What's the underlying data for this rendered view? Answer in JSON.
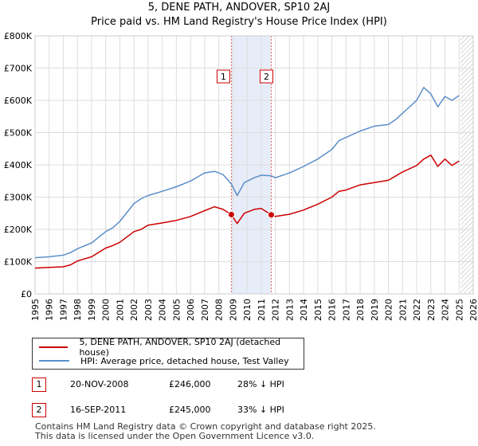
{
  "header": {
    "title_line1": "5, DENE PATH, ANDOVER, SP10 2AJ",
    "title_line2": "Price paid vs. HM Land Registry's House Price Index (HPI)"
  },
  "chart_data": {
    "type": "line",
    "title": "5, DENE PATH, ANDOVER, SP10 2AJ — Price paid vs. HM Land Registry's House Price Index (HPI)",
    "xlabel": "",
    "ylabel": "",
    "xlim": [
      1995,
      2026
    ],
    "ylim": [
      0,
      800000
    ],
    "y_ticks": [
      {
        "value": 0,
        "label": "£0"
      },
      {
        "value": 100000,
        "label": "£100K"
      },
      {
        "value": 200000,
        "label": "£200K"
      },
      {
        "value": 300000,
        "label": "£300K"
      },
      {
        "value": 400000,
        "label": "£400K"
      },
      {
        "value": 500000,
        "label": "£500K"
      },
      {
        "value": 600000,
        "label": "£600K"
      },
      {
        "value": 700000,
        "label": "£700K"
      },
      {
        "value": 800000,
        "label": "£800K"
      }
    ],
    "x_ticks": [
      "1995",
      "1996",
      "1997",
      "1998",
      "1999",
      "2000",
      "2001",
      "2002",
      "2003",
      "2004",
      "2005",
      "2006",
      "2007",
      "2008",
      "2009",
      "2010",
      "2011",
      "2012",
      "2013",
      "2014",
      "2015",
      "2016",
      "2017",
      "2018",
      "2019",
      "2020",
      "2021",
      "2022",
      "2023",
      "2024",
      "2025",
      "2026"
    ],
    "grid": true,
    "shaded_period": {
      "from": 2008.89,
      "to": 2011.71
    },
    "data_end_hatch_from": 2025.1,
    "series": [
      {
        "name": "5, DENE PATH, ANDOVER, SP10 2AJ (detached house)",
        "color": "#cc0000",
        "x": [
          1995.0,
          1996.0,
          1997.0,
          1997.5,
          1998.0,
          1999.0,
          2000.0,
          2000.5,
          2001.0,
          2002.0,
          2002.5,
          2003.0,
          2004.0,
          2005.0,
          2006.0,
          2007.0,
          2007.7,
          2008.3,
          2008.89,
          2009.3,
          2009.8,
          2010.5,
          2011.0,
          2011.71,
          2012.0,
          2013.0,
          2014.0,
          2015.0,
          2016.0,
          2016.5,
          2017.0,
          2018.0,
          2019.0,
          2020.0,
          2020.5,
          2021.0,
          2022.0,
          2022.5,
          2023.0,
          2023.5,
          2024.0,
          2024.5,
          2025.0
        ],
        "values": [
          80000,
          82000,
          84000,
          90000,
          102000,
          115000,
          142000,
          150000,
          160000,
          193000,
          200000,
          213000,
          220000,
          228000,
          240000,
          258000,
          270000,
          262000,
          246000,
          218000,
          250000,
          262000,
          265000,
          245000,
          240000,
          247000,
          260000,
          278000,
          300000,
          318000,
          322000,
          338000,
          345000,
          352000,
          365000,
          378000,
          398000,
          418000,
          430000,
          395000,
          418000,
          398000,
          412000
        ]
      },
      {
        "name": "HPI: Average price, detached house, Test Valley",
        "color": "#5b8ec9",
        "x": [
          1995.0,
          1996.0,
          1997.0,
          1997.5,
          1998.0,
          1999.0,
          2000.0,
          2000.5,
          2001.0,
          2002.0,
          2002.5,
          2003.0,
          2004.0,
          2005.0,
          2006.0,
          2007.0,
          2007.7,
          2008.3,
          2008.89,
          2009.3,
          2009.8,
          2010.5,
          2011.0,
          2011.71,
          2012.0,
          2013.0,
          2014.0,
          2015.0,
          2016.0,
          2016.5,
          2017.0,
          2018.0,
          2019.0,
          2020.0,
          2020.5,
          2021.0,
          2022.0,
          2022.5,
          2023.0,
          2023.5,
          2024.0,
          2024.5,
          2025.0
        ],
        "values": [
          112000,
          115000,
          120000,
          128000,
          140000,
          158000,
          193000,
          205000,
          225000,
          280000,
          295000,
          305000,
          318000,
          332000,
          350000,
          375000,
          380000,
          370000,
          341000,
          305000,
          345000,
          360000,
          368000,
          366000,
          360000,
          375000,
          395000,
          418000,
          448000,
          475000,
          485000,
          505000,
          520000,
          525000,
          540000,
          560000,
          600000,
          640000,
          620000,
          580000,
          612000,
          600000,
          615000
        ]
      }
    ],
    "annotations": [
      {
        "label": "1",
        "x": 2008.89,
        "y": 246000
      },
      {
        "label": "2",
        "x": 2011.71,
        "y": 245000
      }
    ]
  },
  "legend": {
    "items": [
      {
        "label": "5, DENE PATH, ANDOVER, SP10 2AJ (detached house)",
        "color": "#cc0000"
      },
      {
        "label": "HPI: Average price, detached house, Test Valley",
        "color": "#5b8ec9"
      }
    ]
  },
  "sales": [
    {
      "num": "1",
      "date": "20-NOV-2008",
      "price": "£246,000",
      "hpi": "28% ↓ HPI"
    },
    {
      "num": "2",
      "date": "16-SEP-2011",
      "price": "£245,000",
      "hpi": "33% ↓ HPI"
    }
  ],
  "footer": {
    "line1": "Contains HM Land Registry data © Crown copyright and database right 2025.",
    "line2": "This data is licensed under the Open Government Licence v3.0."
  }
}
